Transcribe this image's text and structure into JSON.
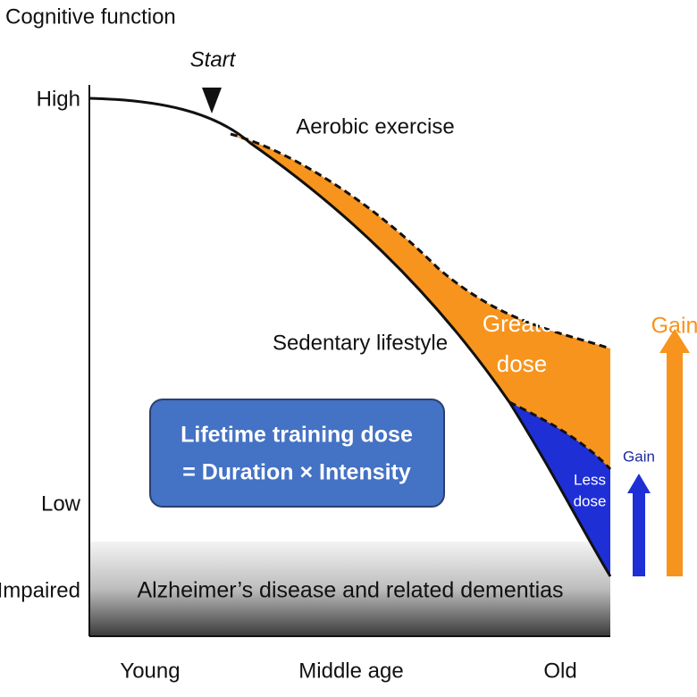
{
  "y_axis": {
    "title": "Cognitive function",
    "levels": [
      "High",
      "Low",
      "Impaired"
    ]
  },
  "x_axis": {
    "stages": [
      "Young",
      "Middle age",
      "Old"
    ]
  },
  "start_label": "Start",
  "curves": {
    "aerobic": "Aerobic exercise",
    "sedentary": "Sedentary lifestyle"
  },
  "regions": {
    "greater_dose": [
      "Greater",
      "dose"
    ],
    "less_dose": [
      "Less",
      "dose"
    ]
  },
  "dose_box": [
    "Lifetime training dose",
    "= Duration × Intensity"
  ],
  "disease_band": "Alzheimer’s disease and related dementias",
  "gains": {
    "small": "Gain",
    "large": "Gain"
  }
}
